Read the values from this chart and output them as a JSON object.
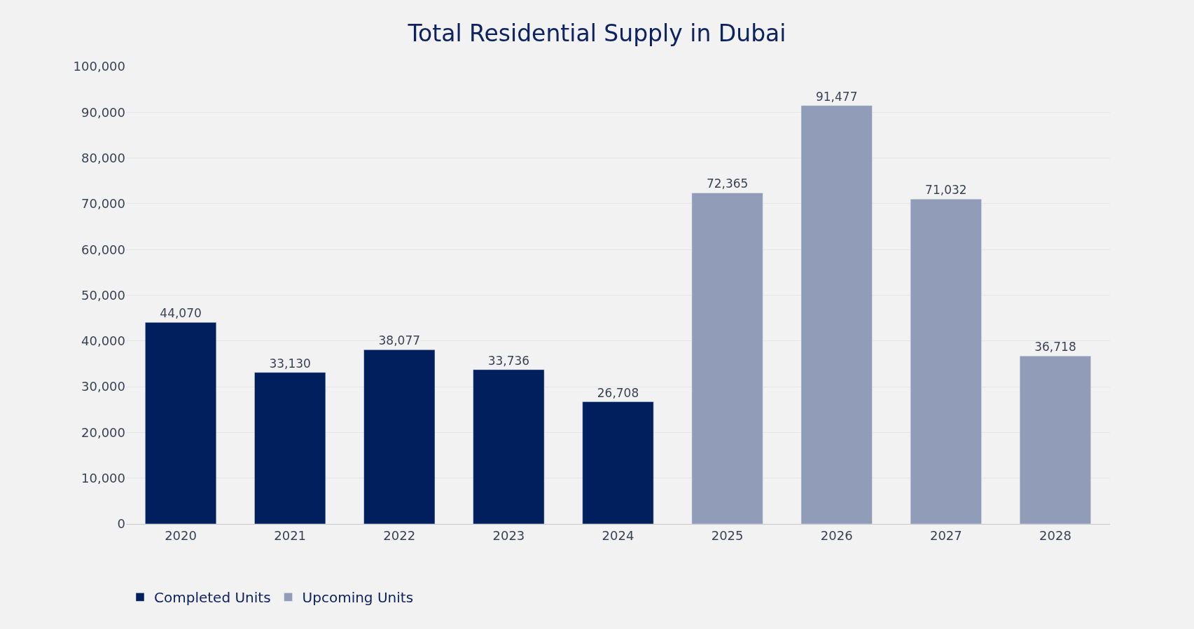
{
  "chart_data": {
    "type": "bar",
    "title": "Total Residential Supply in Dubai",
    "categories": [
      "2020",
      "2021",
      "2022",
      "2023",
      "2024",
      "2025",
      "2026",
      "2027",
      "2028"
    ],
    "series": [
      {
        "name": "Completed Units",
        "color": "#001f5c",
        "values": [
          44070,
          33130,
          38077,
          33736,
          26708,
          null,
          null,
          null,
          null
        ],
        "value_labels": [
          "44,070",
          "33,130",
          "38,077",
          "33,736",
          "26,708",
          null,
          null,
          null,
          null
        ]
      },
      {
        "name": "Upcoming Units",
        "color": "#919cb8",
        "values": [
          null,
          null,
          null,
          null,
          null,
          72365,
          91477,
          71032,
          36718
        ],
        "value_labels": [
          null,
          null,
          null,
          null,
          null,
          "72,365",
          "91,477",
          "71,032",
          "36,718"
        ]
      }
    ],
    "ylim": [
      0,
      100000
    ],
    "yticks": [
      {
        "value": 0,
        "label": "0"
      },
      {
        "value": 10000,
        "label": "10,000"
      },
      {
        "value": 20000,
        "label": "20,000"
      },
      {
        "value": 30000,
        "label": "30,000"
      },
      {
        "value": 40000,
        "label": "40,000"
      },
      {
        "value": 50000,
        "label": "50,000"
      },
      {
        "value": 60000,
        "label": "60,000"
      },
      {
        "value": 70000,
        "label": "70,000"
      },
      {
        "value": 80000,
        "label": "80,000"
      },
      {
        "value": 90000,
        "label": "90,000"
      },
      {
        "value": 100000,
        "label": "100,000"
      }
    ],
    "grid": "y",
    "legend": "bottom left"
  }
}
